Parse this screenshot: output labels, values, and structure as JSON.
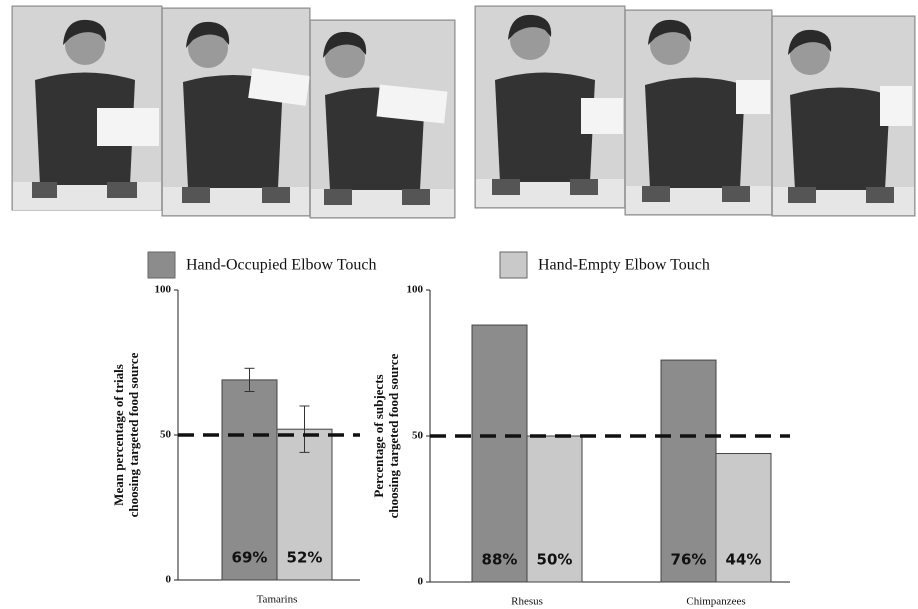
{
  "chart_data": [
    {
      "type": "bar",
      "ylabel": [
        "Mean percentage of trials",
        "choosing targeted food source"
      ],
      "categories": [
        "Tamarins"
      ],
      "series": [
        {
          "name": "Hand-Occupied Elbow Touch",
          "color": "#8c8c8c",
          "values": [
            69
          ],
          "value_labels": [
            "69%"
          ],
          "errors": [
            4
          ]
        },
        {
          "name": "Hand-Empty Elbow Touch",
          "color": "#c9c9c9",
          "values": [
            52
          ],
          "value_labels": [
            "52%"
          ],
          "errors": [
            8
          ]
        }
      ],
      "ylim": [
        0,
        100
      ],
      "yticks": [
        0,
        50,
        100
      ],
      "hline": 50
    },
    {
      "type": "bar",
      "ylabel": [
        "Percentage of subjects",
        "choosing targeted food source"
      ],
      "categories": [
        "Rhesus",
        "Chimpanzees"
      ],
      "series": [
        {
          "color": "#8c8c8c",
          "values": [
            88,
            76
          ],
          "value_labels": [
            "88%",
            "76%"
          ]
        },
        {
          "color": "#c9c9c9",
          "values": [
            50,
            44
          ],
          "value_labels": [
            "50%",
            "44%"
          ]
        }
      ],
      "ylim": [
        0,
        100
      ],
      "yticks": [
        0,
        50,
        100
      ],
      "hline": 50
    }
  ]
}
